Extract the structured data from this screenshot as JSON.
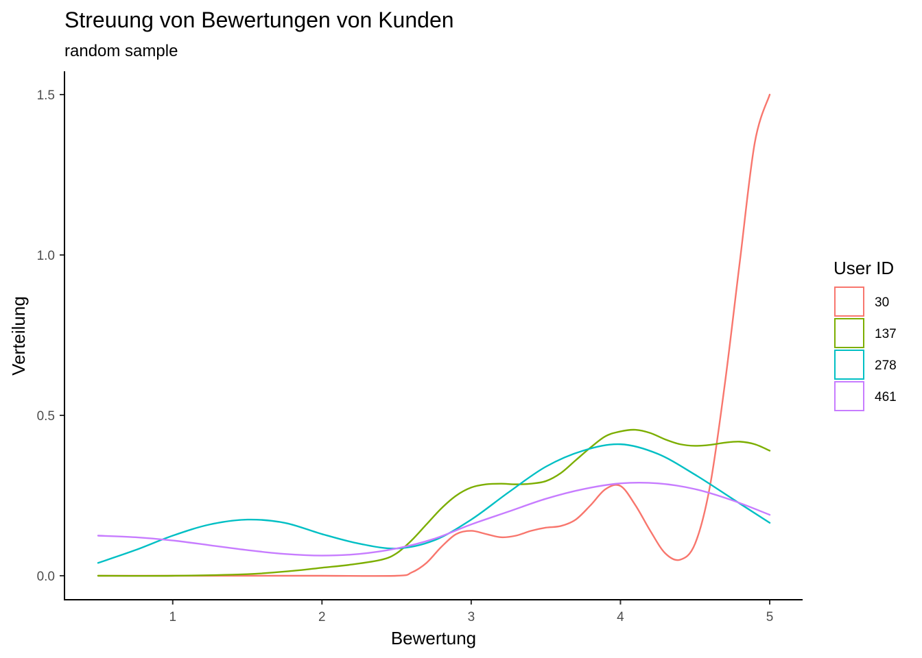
{
  "chart_data": {
    "type": "line",
    "title": "Streuung von Bewertungen von Kunden",
    "subtitle": "random sample",
    "xlabel": "Bewertung",
    "ylabel": "Verteilung",
    "xlim": [
      0.5,
      5
    ],
    "ylim": [
      0,
      1.5
    ],
    "x_ticks": [
      1,
      2,
      3,
      4,
      5
    ],
    "x_tick_labels": [
      "1",
      "2",
      "3",
      "4",
      "5"
    ],
    "y_ticks": [
      0,
      0.5,
      1.0,
      1.5
    ],
    "y_tick_labels": [
      "0.0",
      "0.5",
      "1.0",
      "1.5"
    ],
    "grid": false,
    "legend": {
      "title": "User ID",
      "position": "right"
    },
    "series": [
      {
        "name": "30",
        "color": "#F8766D",
        "x": [
          0.5,
          1.0,
          1.5,
          2.0,
          2.5,
          2.6,
          2.7,
          2.8,
          2.9,
          3.0,
          3.1,
          3.2,
          3.3,
          3.4,
          3.5,
          3.6,
          3.7,
          3.8,
          3.9,
          4.0,
          4.1,
          4.2,
          4.3,
          4.4,
          4.5,
          4.6,
          4.7,
          4.8,
          4.9,
          5.0
        ],
        "y": [
          0,
          0,
          0,
          0,
          0,
          0.01,
          0.04,
          0.09,
          0.13,
          0.14,
          0.13,
          0.12,
          0.125,
          0.14,
          0.15,
          0.155,
          0.175,
          0.22,
          0.27,
          0.28,
          0.22,
          0.14,
          0.07,
          0.05,
          0.1,
          0.28,
          0.6,
          0.98,
          1.35,
          1.5
        ]
      },
      {
        "name": "137",
        "color": "#7CAE00",
        "x": [
          0.5,
          1.0,
          1.5,
          1.8,
          2.0,
          2.2,
          2.4,
          2.5,
          2.6,
          2.7,
          2.8,
          2.9,
          3.0,
          3.1,
          3.2,
          3.3,
          3.4,
          3.5,
          3.6,
          3.7,
          3.8,
          3.9,
          4.0,
          4.1,
          4.2,
          4.3,
          4.4,
          4.5,
          4.6,
          4.7,
          4.8,
          4.9,
          5.0
        ],
        "y": [
          0,
          0,
          0.005,
          0.015,
          0.025,
          0.035,
          0.05,
          0.07,
          0.11,
          0.16,
          0.21,
          0.25,
          0.275,
          0.285,
          0.287,
          0.285,
          0.287,
          0.295,
          0.32,
          0.36,
          0.4,
          0.435,
          0.45,
          0.455,
          0.445,
          0.425,
          0.41,
          0.405,
          0.408,
          0.415,
          0.418,
          0.41,
          0.39
        ]
      },
      {
        "name": "278",
        "color": "#00BFC4",
        "x": [
          0.5,
          0.75,
          1.0,
          1.25,
          1.5,
          1.75,
          2.0,
          2.25,
          2.5,
          2.75,
          3.0,
          3.25,
          3.5,
          3.75,
          4.0,
          4.25,
          4.5,
          4.75,
          5.0
        ],
        "y": [
          0.04,
          0.08,
          0.125,
          0.16,
          0.175,
          0.165,
          0.13,
          0.1,
          0.085,
          0.11,
          0.175,
          0.26,
          0.34,
          0.39,
          0.41,
          0.38,
          0.315,
          0.24,
          0.165
        ]
      },
      {
        "name": "461",
        "color": "#C77CFF",
        "x": [
          0.5,
          0.75,
          1.0,
          1.25,
          1.5,
          1.75,
          2.0,
          2.25,
          2.5,
          2.75,
          3.0,
          3.25,
          3.5,
          3.75,
          4.0,
          4.25,
          4.5,
          4.75,
          5.0
        ],
        "y": [
          0.125,
          0.12,
          0.11,
          0.095,
          0.08,
          0.068,
          0.063,
          0.068,
          0.085,
          0.115,
          0.16,
          0.2,
          0.24,
          0.27,
          0.288,
          0.288,
          0.27,
          0.235,
          0.19
        ]
      }
    ]
  }
}
